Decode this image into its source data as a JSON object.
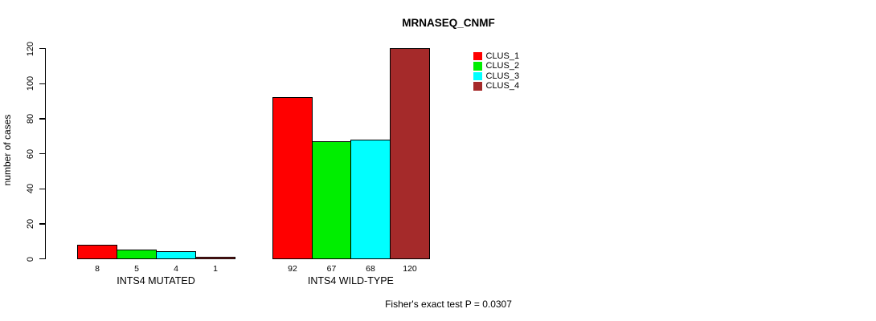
{
  "title": "MRNASEQ_CNMF",
  "footer": "Fisher's exact test P = 0.0307",
  "chart_data": {
    "type": "bar",
    "title": "MRNASEQ_CNMF",
    "xlabel": "",
    "ylabel": "number of cases",
    "ylim": [
      0,
      120
    ],
    "yticks": [
      0,
      20,
      40,
      60,
      80,
      100,
      120
    ],
    "grid": false,
    "legend_position": "top-right",
    "categories": [
      "INTS4 MUTATED",
      "INTS4 WILD-TYPE"
    ],
    "series": [
      {
        "name": "CLUS_1",
        "color": "#FF0000",
        "values": [
          8,
          92
        ]
      },
      {
        "name": "CLUS_2",
        "color": "#00EE00",
        "values": [
          5,
          67
        ]
      },
      {
        "name": "CLUS_3",
        "color": "#00FFFF",
        "values": [
          4,
          68
        ]
      },
      {
        "name": "CLUS_4",
        "color": "#A52A2A",
        "values": [
          1,
          120
        ]
      }
    ],
    "bar_value_labels": [
      [
        8,
        5,
        4,
        1
      ],
      [
        92,
        67,
        68,
        120
      ]
    ],
    "annotation": "Fisher's exact test P = 0.0307"
  }
}
